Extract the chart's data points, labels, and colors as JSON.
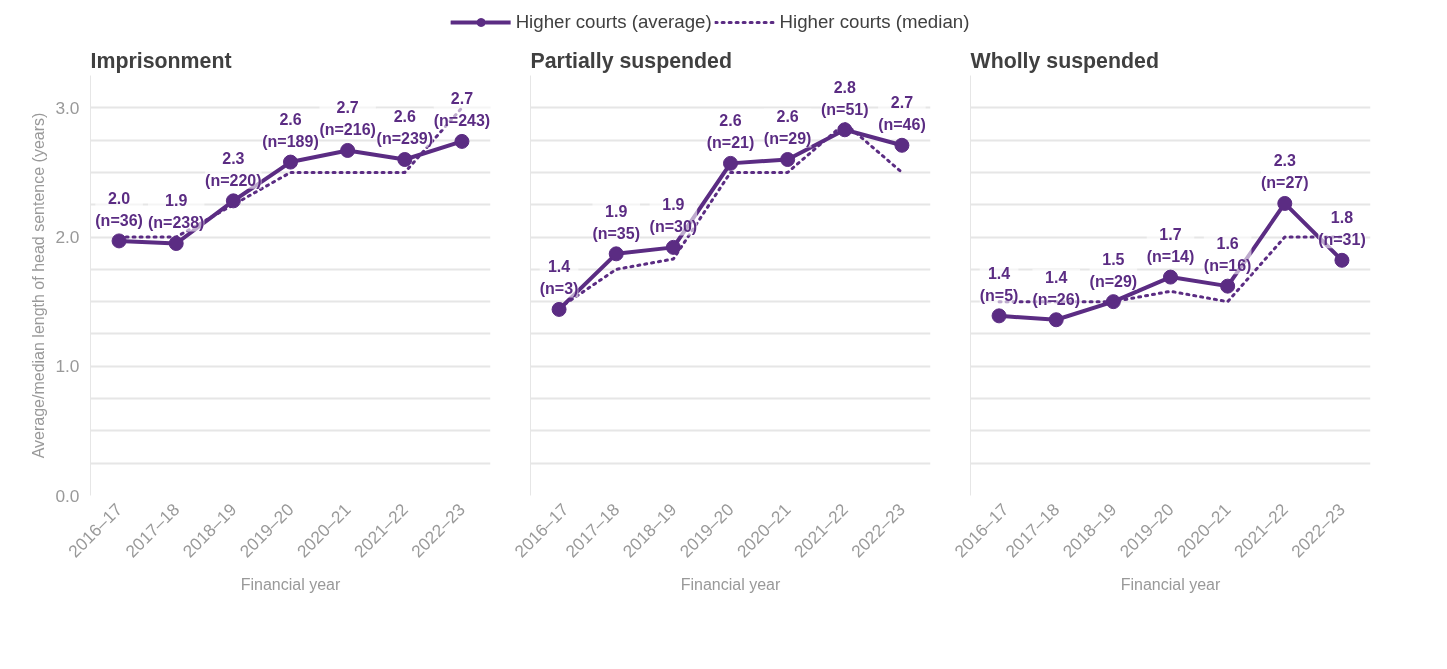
{
  "chart_data": [
    {
      "type": "line",
      "title": "Imprisonment",
      "xlabel": "Financial year",
      "ylabel": "Average/median length of head sentence (years)",
      "categories": [
        "2016–17",
        "2017–18",
        "2018–19",
        "2019–20",
        "2020–21",
        "2021–22",
        "2022–23"
      ],
      "ylim": [
        0,
        3.25
      ],
      "yticks": [
        {
          "value": 0,
          "label": "0.0"
        },
        {
          "value": 0.25,
          "label": null
        },
        {
          "value": 0.5,
          "label": null
        },
        {
          "value": 0.75,
          "label": null
        },
        {
          "value": 1,
          "label": "1.0"
        },
        {
          "value": 1.25,
          "label": null
        },
        {
          "value": 1.5,
          "label": null
        },
        {
          "value": 1.75,
          "label": null
        },
        {
          "value": 2,
          "label": "2.0"
        },
        {
          "value": 2.25,
          "label": null
        },
        {
          "value": 2.5,
          "label": null
        },
        {
          "value": 2.75,
          "label": null
        },
        {
          "value": 3,
          "label": "3.0"
        }
      ],
      "grid": "y",
      "legend": "top",
      "series": [
        {
          "name": "Higher courts (average)",
          "color": "#5b2c83",
          "marker": "circle",
          "line_style": "solid",
          "values": [
            1.97,
            1.95,
            2.28,
            2.58,
            2.67,
            2.6,
            2.74
          ],
          "value_labels": [
            "2.0\n(n=36)",
            "1.9\n(n=238)",
            "2.3\n(n=220)",
            "2.6\n(n=189)",
            "2.7\n(n=216)",
            "2.6\n(n=239)",
            "2.7\n(n=243)"
          ]
        },
        {
          "name": "Higher courts (median)",
          "color": "#5b2c83",
          "marker": "none",
          "line_style": "dotted",
          "values": [
            2.0,
            2.0,
            2.25,
            2.5,
            2.5,
            2.5,
            3.0
          ]
        }
      ]
    },
    {
      "type": "line",
      "title": "Partially suspended",
      "xlabel": "Financial year",
      "categories": [
        "2016–17",
        "2017–18",
        "2018–19",
        "2019–20",
        "2020–21",
        "2021–22",
        "2022–23"
      ],
      "ylim": [
        0,
        3.25
      ],
      "yticks": [
        {
          "value": 0,
          "label": null
        },
        {
          "value": 0.25,
          "label": null
        },
        {
          "value": 0.5,
          "label": null
        },
        {
          "value": 0.75,
          "label": null
        },
        {
          "value": 1,
          "label": null
        },
        {
          "value": 1.25,
          "label": null
        },
        {
          "value": 1.5,
          "label": null
        },
        {
          "value": 1.75,
          "label": null
        },
        {
          "value": 2,
          "label": null
        },
        {
          "value": 2.25,
          "label": null
        },
        {
          "value": 2.5,
          "label": null
        },
        {
          "value": 2.75,
          "label": null
        },
        {
          "value": 3,
          "label": null
        }
      ],
      "grid": "y",
      "tick_labels": "x",
      "series": [
        {
          "color": "#5b2c83",
          "marker": "circle",
          "line_style": "solid",
          "values": [
            1.44,
            1.87,
            1.92,
            2.57,
            2.6,
            2.83,
            2.71
          ],
          "value_labels": [
            "1.4\n(n=3)",
            "1.9\n(n=35)",
            "1.9\n(n=30)",
            "2.6\n(n=21)",
            "2.6\n(n=29)",
            "2.8\n(n=51)",
            "2.7\n(n=46)"
          ]
        },
        {
          "color": "#5b2c83",
          "marker": "none",
          "line_style": "dotted",
          "values": [
            1.45,
            1.75,
            1.83,
            2.5,
            2.5,
            2.88,
            2.5
          ]
        }
      ]
    },
    {
      "type": "line",
      "title": "Wholly suspended",
      "xlabel": "Financial year",
      "categories": [
        "2016–17",
        "2017–18",
        "2018–19",
        "2019–20",
        "2020–21",
        "2021–22",
        "2022–23"
      ],
      "ylim": [
        0,
        3.25
      ],
      "yticks": [
        {
          "value": 0,
          "label": null
        },
        {
          "value": 0.25,
          "label": null
        },
        {
          "value": 0.5,
          "label": null
        },
        {
          "value": 0.75,
          "label": null
        },
        {
          "value": 1,
          "label": null
        },
        {
          "value": 1.25,
          "label": null
        },
        {
          "value": 1.5,
          "label": null
        },
        {
          "value": 1.75,
          "label": null
        },
        {
          "value": 2,
          "label": null
        },
        {
          "value": 2.25,
          "label": null
        },
        {
          "value": 2.5,
          "label": null
        },
        {
          "value": 2.75,
          "label": null
        },
        {
          "value": 3,
          "label": null
        }
      ],
      "grid": "y",
      "tick_labels": "x",
      "series": [
        {
          "color": "#5b2c83",
          "marker": "circle",
          "line_style": "solid",
          "values": [
            1.39,
            1.36,
            1.5,
            1.69,
            1.62,
            2.26,
            1.82
          ],
          "value_labels": [
            "1.4\n(n=5)",
            "1.4\n(n=26)",
            "1.5\n(n=29)",
            "1.7\n(n=14)",
            "1.6\n(n=16)",
            "2.3\n(n=27)",
            "1.8\n(n=31)"
          ]
        },
        {
          "color": "#5b2c83",
          "marker": "none",
          "line_style": "dotted",
          "values": [
            1.5,
            1.5,
            1.5,
            1.58,
            1.5,
            2.0,
            2.0
          ]
        }
      ]
    }
  ]
}
